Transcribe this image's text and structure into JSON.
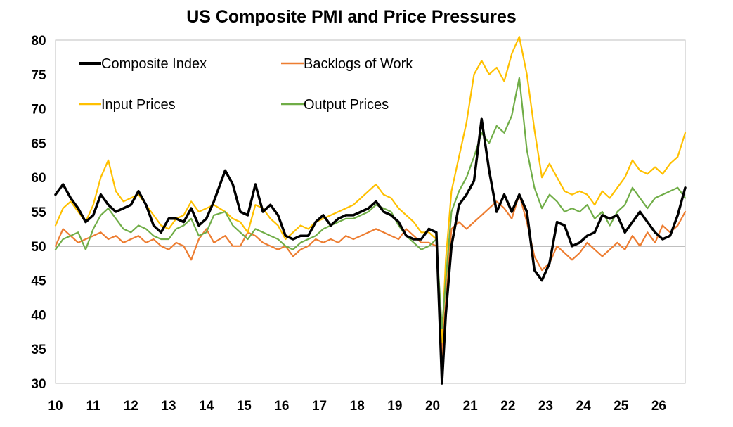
{
  "chart_data": {
    "type": "line",
    "title": "US Composite PMI and Price Pressures",
    "xlabel": "",
    "ylabel": "",
    "ylim": [
      30,
      80
    ],
    "xlim": [
      2010,
      2026.7
    ],
    "grid": false,
    "reference_line": 50,
    "legend": "top-left inside plot, two columns",
    "yticks": [
      "30",
      "35",
      "40",
      "45",
      "50",
      "55",
      "60",
      "65",
      "70",
      "75",
      "80"
    ],
    "xticks": [
      "10",
      "11",
      "12",
      "13",
      "14",
      "15",
      "16",
      "17",
      "18",
      "19",
      "20",
      "21",
      "22",
      "23",
      "24",
      "25",
      "26"
    ],
    "series": [
      {
        "name": "Composite Index",
        "color": "#000000",
        "x": [
          2010.0,
          2010.2,
          2010.4,
          2010.6,
          2010.8,
          2011.0,
          2011.2,
          2011.4,
          2011.6,
          2011.8,
          2012.0,
          2012.2,
          2012.4,
          2012.6,
          2012.8,
          2013.0,
          2013.2,
          2013.4,
          2013.6,
          2013.8,
          2014.0,
          2014.2,
          2014.5,
          2014.7,
          2014.9,
          2015.1,
          2015.3,
          2015.5,
          2015.7,
          2015.9,
          2016.1,
          2016.3,
          2016.5,
          2016.7,
          2016.9,
          2017.1,
          2017.3,
          2017.5,
          2017.7,
          2017.9,
          2018.1,
          2018.3,
          2018.5,
          2018.7,
          2018.9,
          2019.1,
          2019.3,
          2019.5,
          2019.7,
          2019.9,
          2020.1,
          2020.25,
          2020.35,
          2020.5,
          2020.7,
          2020.9,
          2021.1,
          2021.3,
          2021.5,
          2021.7,
          2021.9,
          2022.1,
          2022.3,
          2022.5,
          2022.7,
          2022.9,
          2023.1,
          2023.3,
          2023.5,
          2023.7,
          2023.9,
          2024.1,
          2024.3,
          2024.5,
          2024.7,
          2024.9,
          2025.1,
          2025.3,
          2025.5,
          2025.7,
          2025.9,
          2026.1,
          2026.3,
          2026.5,
          2026.7
        ],
        "values": [
          57.5,
          59.0,
          57.0,
          55.5,
          53.5,
          54.5,
          57.5,
          56.0,
          55.0,
          55.5,
          56.0,
          58.0,
          56.0,
          53.0,
          52.0,
          54.0,
          54.0,
          53.5,
          55.5,
          53.0,
          54.0,
          56.5,
          61.0,
          59.0,
          55.0,
          54.5,
          59.0,
          55.0,
          56.0,
          54.5,
          51.5,
          51.0,
          51.5,
          51.5,
          53.5,
          54.5,
          53.0,
          54.0,
          54.5,
          54.5,
          55.0,
          55.5,
          56.5,
          55.0,
          54.5,
          53.5,
          51.5,
          51.0,
          51.0,
          52.5,
          52.0,
          30.0,
          40.0,
          50.0,
          56.0,
          57.5,
          59.5,
          68.5,
          61.0,
          55.0,
          57.5,
          55.0,
          57.5,
          55.0,
          46.5,
          45.0,
          47.5,
          53.5,
          53.0,
          50.0,
          50.5,
          51.5,
          52.0,
          54.5,
          54.0,
          54.5,
          52.0,
          53.5,
          55.0,
          53.5,
          52.0,
          51.0,
          51.5,
          54.5,
          58.5
        ]
      },
      {
        "name": "Backlogs of Work",
        "color": "#ed7d31",
        "x": [
          2010.0,
          2010.2,
          2010.4,
          2010.6,
          2010.8,
          2011.0,
          2011.2,
          2011.4,
          2011.6,
          2011.8,
          2012.0,
          2012.2,
          2012.4,
          2012.6,
          2012.8,
          2013.0,
          2013.2,
          2013.4,
          2013.6,
          2013.8,
          2014.0,
          2014.2,
          2014.5,
          2014.7,
          2014.9,
          2015.1,
          2015.3,
          2015.5,
          2015.7,
          2015.9,
          2016.1,
          2016.3,
          2016.5,
          2016.7,
          2016.9,
          2017.1,
          2017.3,
          2017.5,
          2017.7,
          2017.9,
          2018.1,
          2018.3,
          2018.5,
          2018.7,
          2018.9,
          2019.1,
          2019.3,
          2019.5,
          2019.7,
          2019.9,
          2020.1,
          2020.25,
          2020.35,
          2020.5,
          2020.7,
          2020.9,
          2021.1,
          2021.3,
          2021.5,
          2021.7,
          2021.9,
          2022.1,
          2022.3,
          2022.5,
          2022.7,
          2022.9,
          2023.1,
          2023.3,
          2023.5,
          2023.7,
          2023.9,
          2024.1,
          2024.3,
          2024.5,
          2024.7,
          2024.9,
          2025.1,
          2025.3,
          2025.5,
          2025.7,
          2025.9,
          2026.1,
          2026.3,
          2026.5,
          2026.7
        ],
        "values": [
          50.0,
          52.5,
          51.5,
          50.5,
          51.0,
          51.5,
          52.0,
          51.0,
          51.5,
          50.5,
          51.0,
          51.5,
          50.5,
          51.0,
          50.0,
          49.5,
          50.5,
          50.0,
          48.0,
          51.0,
          52.5,
          50.5,
          51.5,
          50.0,
          50.0,
          52.0,
          51.5,
          50.5,
          50.0,
          49.5,
          50.0,
          48.5,
          49.5,
          50.0,
          51.0,
          50.5,
          51.0,
          50.5,
          51.5,
          51.0,
          51.5,
          52.0,
          52.5,
          52.0,
          51.5,
          51.0,
          52.5,
          51.5,
          50.5,
          50.5,
          50.0,
          34.0,
          42.0,
          52.5,
          53.5,
          52.5,
          53.5,
          54.5,
          55.5,
          56.5,
          55.5,
          54.0,
          57.5,
          53.5,
          48.5,
          46.5,
          47.5,
          50.0,
          49.0,
          48.0,
          49.0,
          50.5,
          49.5,
          48.5,
          49.5,
          50.5,
          49.5,
          51.5,
          50.0,
          52.0,
          50.5,
          53.0,
          52.0,
          53.0,
          55.0
        ]
      },
      {
        "name": "Input Prices",
        "color": "#ffc000",
        "x": [
          2010.0,
          2010.2,
          2010.4,
          2010.6,
          2010.8,
          2011.0,
          2011.2,
          2011.4,
          2011.6,
          2011.8,
          2012.0,
          2012.2,
          2012.4,
          2012.6,
          2012.8,
          2013.0,
          2013.2,
          2013.4,
          2013.6,
          2013.8,
          2014.0,
          2014.2,
          2014.5,
          2014.7,
          2014.9,
          2015.1,
          2015.3,
          2015.5,
          2015.7,
          2015.9,
          2016.1,
          2016.3,
          2016.5,
          2016.7,
          2016.9,
          2017.1,
          2017.3,
          2017.5,
          2017.7,
          2017.9,
          2018.1,
          2018.3,
          2018.5,
          2018.7,
          2018.9,
          2019.1,
          2019.3,
          2019.5,
          2019.7,
          2019.9,
          2020.1,
          2020.25,
          2020.35,
          2020.5,
          2020.7,
          2020.9,
          2021.1,
          2021.3,
          2021.5,
          2021.7,
          2021.9,
          2022.1,
          2022.3,
          2022.5,
          2022.7,
          2022.9,
          2023.1,
          2023.3,
          2023.5,
          2023.7,
          2023.9,
          2024.1,
          2024.3,
          2024.5,
          2024.7,
          2024.9,
          2025.1,
          2025.3,
          2025.5,
          2025.7,
          2025.9,
          2026.1,
          2026.3,
          2026.5,
          2026.7
        ],
        "values": [
          53.0,
          55.5,
          56.5,
          55.0,
          53.5,
          56.0,
          60.0,
          62.5,
          58.0,
          56.5,
          57.0,
          57.5,
          56.0,
          54.5,
          53.0,
          52.5,
          54.0,
          54.5,
          56.5,
          55.0,
          55.5,
          56.0,
          55.0,
          54.0,
          53.5,
          52.0,
          56.0,
          55.5,
          54.0,
          53.0,
          51.0,
          52.0,
          53.0,
          52.5,
          53.5,
          54.0,
          54.5,
          55.0,
          55.5,
          56.0,
          57.0,
          58.0,
          59.0,
          57.5,
          57.0,
          55.5,
          54.5,
          53.5,
          52.0,
          52.0,
          51.0,
          36.0,
          48.0,
          58.0,
          63.0,
          68.0,
          75.0,
          77.0,
          75.0,
          76.0,
          74.0,
          78.0,
          80.5,
          75.0,
          67.0,
          60.0,
          62.0,
          60.0,
          58.0,
          57.5,
          58.0,
          57.5,
          56.0,
          58.0,
          57.0,
          58.5,
          60.0,
          62.5,
          61.0,
          60.5,
          61.5,
          60.5,
          62.0,
          63.0,
          66.5
        ]
      },
      {
        "name": "Output Prices",
        "color": "#70ad47",
        "x": [
          2010.0,
          2010.2,
          2010.4,
          2010.6,
          2010.8,
          2011.0,
          2011.2,
          2011.4,
          2011.6,
          2011.8,
          2012.0,
          2012.2,
          2012.4,
          2012.6,
          2012.8,
          2013.0,
          2013.2,
          2013.4,
          2013.6,
          2013.8,
          2014.0,
          2014.2,
          2014.5,
          2014.7,
          2014.9,
          2015.1,
          2015.3,
          2015.5,
          2015.7,
          2015.9,
          2016.1,
          2016.3,
          2016.5,
          2016.7,
          2016.9,
          2017.1,
          2017.3,
          2017.5,
          2017.7,
          2017.9,
          2018.1,
          2018.3,
          2018.5,
          2018.7,
          2018.9,
          2019.1,
          2019.3,
          2019.5,
          2019.7,
          2019.9,
          2020.1,
          2020.25,
          2020.35,
          2020.5,
          2020.7,
          2020.9,
          2021.1,
          2021.3,
          2021.5,
          2021.7,
          2021.9,
          2022.1,
          2022.3,
          2022.5,
          2022.7,
          2022.9,
          2023.1,
          2023.3,
          2023.5,
          2023.7,
          2023.9,
          2024.1,
          2024.3,
          2024.5,
          2024.7,
          2024.9,
          2025.1,
          2025.3,
          2025.5,
          2025.7,
          2025.9,
          2026.1,
          2026.3,
          2026.5,
          2026.7
        ],
        "values": [
          49.5,
          51.0,
          51.5,
          52.0,
          49.5,
          52.5,
          54.5,
          55.5,
          54.0,
          52.5,
          52.0,
          53.0,
          52.5,
          51.5,
          51.0,
          51.0,
          52.5,
          53.0,
          54.0,
          51.5,
          52.0,
          54.5,
          55.0,
          53.0,
          52.0,
          51.0,
          52.5,
          52.0,
          51.5,
          51.0,
          50.0,
          49.5,
          50.5,
          51.0,
          51.5,
          52.5,
          53.0,
          53.5,
          54.0,
          54.0,
          54.5,
          55.0,
          56.0,
          55.5,
          55.0,
          53.0,
          51.5,
          50.5,
          49.5,
          50.0,
          51.0,
          38.0,
          45.0,
          55.0,
          58.0,
          60.0,
          63.0,
          66.5,
          65.0,
          67.5,
          66.5,
          69.0,
          74.5,
          64.0,
          58.5,
          55.5,
          57.5,
          56.5,
          55.0,
          55.5,
          55.0,
          56.0,
          54.0,
          55.0,
          53.0,
          55.0,
          56.0,
          58.5,
          57.0,
          55.5,
          57.0,
          57.5,
          58.0,
          58.5,
          57.0
        ]
      }
    ]
  }
}
